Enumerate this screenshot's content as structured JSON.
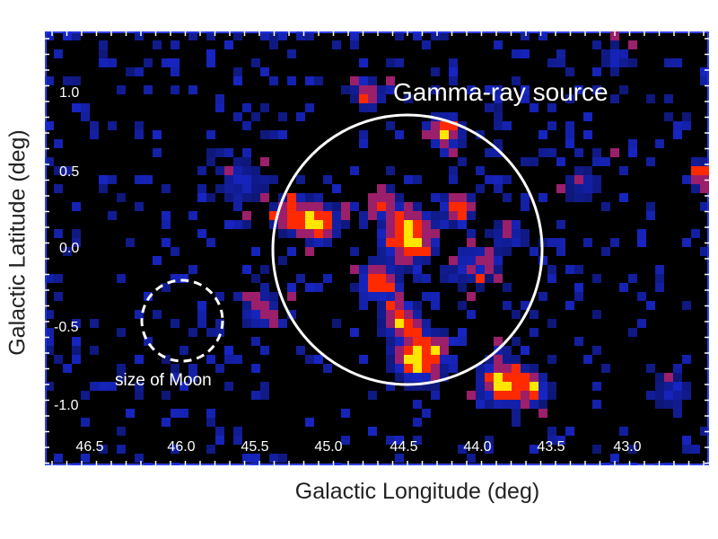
{
  "figure": {
    "annotation_source": "Gamma-ray source",
    "annotation_moon": "size of Moon",
    "xlabel": "Galactic Longitude (deg)",
    "ylabel": "Galactic Latitude (deg)",
    "x_ticks": [
      "46.5",
      "46.0",
      "45.5",
      "45.0",
      "44.5",
      "44.0",
      "43.5",
      "43.0"
    ],
    "y_ticks": [
      "1.0",
      "0.5",
      "0.0",
      "-0.5",
      "-1.0"
    ],
    "colors": {
      "background": "#000000",
      "frame": "#3344ee",
      "low": "#1a2be0",
      "mid": "#9b1f6a",
      "high": "#ff2a00",
      "peak": "#ffe600",
      "circles": "#ffffff"
    }
  }
}
